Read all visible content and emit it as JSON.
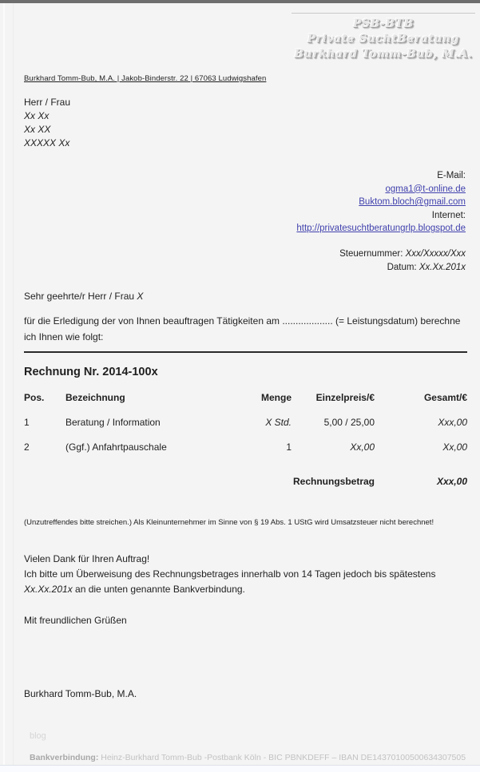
{
  "header": {
    "logo_line1": "PSB-BTB",
    "logo_line2": "Private SuchtBeratung",
    "logo_line3": "Burkhard Tomm-Bub, M.A."
  },
  "sender_line": "Burkhard Tomm-Bub, M.A. | Jakob-Binderstr. 22 | 67063 Ludwigshafen",
  "recipient": {
    "salutation": "Herr / Frau",
    "line1": "Xx Xx",
    "line2": "Xx  XX",
    "line3": "XXXXX Xx"
  },
  "contact": {
    "email_label": "E-Mail:",
    "email1": "ogma1@t-online.de",
    "email2": "Buktom.bloch@gmail.com",
    "internet_label": "Internet:",
    "website": "http://privatesuchtberatungrlp.blogspot.de",
    "tax_label": "Steuernummer: ",
    "tax_value": "Xxx/Xxxxx/Xxx",
    "date_label": "Datum: ",
    "date_value": "Xx.Xx.201x"
  },
  "letter": {
    "greeting_prefix": "Sehr geehrte/r Herr / Frau ",
    "greeting_name": "X",
    "intro": "für die Erledigung der von Ihnen beauftragen Tätigkeiten am ................... (= Leistungsdatum) berechne ich Ihnen wie folgt:"
  },
  "invoice": {
    "title": "Rechnung Nr. 2014-100x",
    "columns": {
      "pos": "Pos.",
      "desc": "Bezeichnung",
      "qty": "Menge",
      "unit": "Einzelpreis/€",
      "total": "Gesamt/€"
    },
    "rows": [
      {
        "pos": "1",
        "desc": "Beratung / Information",
        "qty": "X Std.",
        "unit": "5,00 / 25,00",
        "total": "Xxx,00"
      },
      {
        "pos": "2",
        "desc": "(Ggf.) Anfahrtpauschale",
        "qty": "1",
        "unit": "Xx,00",
        "total": "Xx,00"
      }
    ],
    "total_label": "Rechnungsbetrag",
    "total_value": "Xxx,00"
  },
  "small_print": "(Unzutreffendes bitte streichen.) Als Kleinunternehmer im Sinne von § 19 Abs. 1 UStG wird Umsatzsteuer nicht berechnet!",
  "closing": {
    "thanks": "Vielen Dank für Ihren Auftrag!",
    "payment_part1": "Ich bitte um Überweisung des Rechnungsbetrages innerhalb von 14 Tagen jedoch bis spätestens ",
    "payment_date": "Xx.Xx.201x",
    "payment_part2": " an die unten genannte Bankverbindung.",
    "regards": "Mit freundlichen Grüßen",
    "signature": "Burkhard Tomm-Bub, M.A."
  },
  "footer": {
    "blog": "blog",
    "bank_label": "Bankverbindung:",
    "bank_details": "  Heinz-Burkhard Tomm-Bub -Postbank Köln - BIC PBNKDEFF – IBAN  DE14370100500634307505"
  },
  "colors": {
    "link": "#4141ae",
    "page_background": "#f4f4f4",
    "top_border": "#6e6e6e"
  }
}
